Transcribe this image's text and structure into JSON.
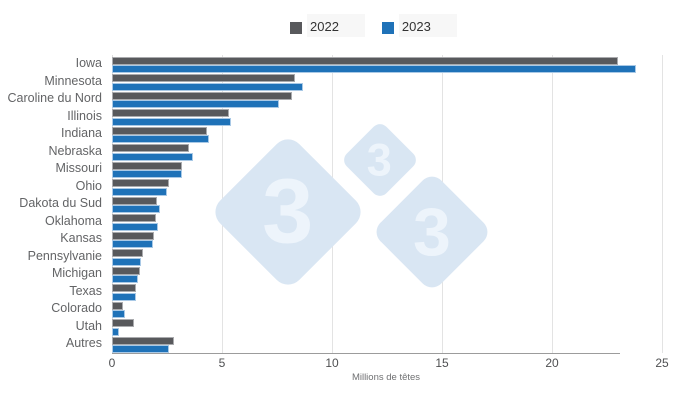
{
  "legend": {
    "items": [
      {
        "label": "2022",
        "color": "#58595c"
      },
      {
        "label": "2023",
        "color": "#1f72b8"
      }
    ]
  },
  "watermark": {
    "glyph": "3",
    "diamond_color": "#d9e6f3",
    "glyph_color": "#edf4fb"
  },
  "chart_data": {
    "type": "bar",
    "orientation": "horizontal",
    "categories": [
      "Iowa",
      "Minnesota",
      "Caroline du Nord",
      "Illinois",
      "Indiana",
      "Nebraska",
      "Missouri",
      "Ohio",
      "Dakota du Sud",
      "Oklahoma",
      "Kansas",
      "Pennsylvanie",
      "Michigan",
      "Texas",
      "Colorado",
      "Utah",
      "Autres"
    ],
    "series": [
      {
        "name": "2022",
        "color": "#58595c",
        "values": [
          23.0,
          8.3,
          8.2,
          5.3,
          4.3,
          3.5,
          3.2,
          2.6,
          2.05,
          2.0,
          1.9,
          1.4,
          1.25,
          1.1,
          0.5,
          1.0,
          2.8
        ]
      },
      {
        "name": "2023",
        "color": "#1f72b8",
        "values": [
          23.8,
          8.7,
          7.6,
          5.4,
          4.4,
          3.7,
          3.2,
          2.5,
          2.2,
          2.1,
          1.85,
          1.3,
          1.2,
          1.1,
          0.6,
          0.3,
          2.6
        ]
      }
    ],
    "xlabel": "Millions de têtes",
    "xticks": [
      0,
      5,
      10,
      15,
      20,
      25
    ],
    "xlim": [
      0,
      26.3
    ],
    "grid": true,
    "legend_position": "top-center",
    "gridline_color": "#e3e3e3",
    "axis_line_color": "#9c9c9c"
  }
}
